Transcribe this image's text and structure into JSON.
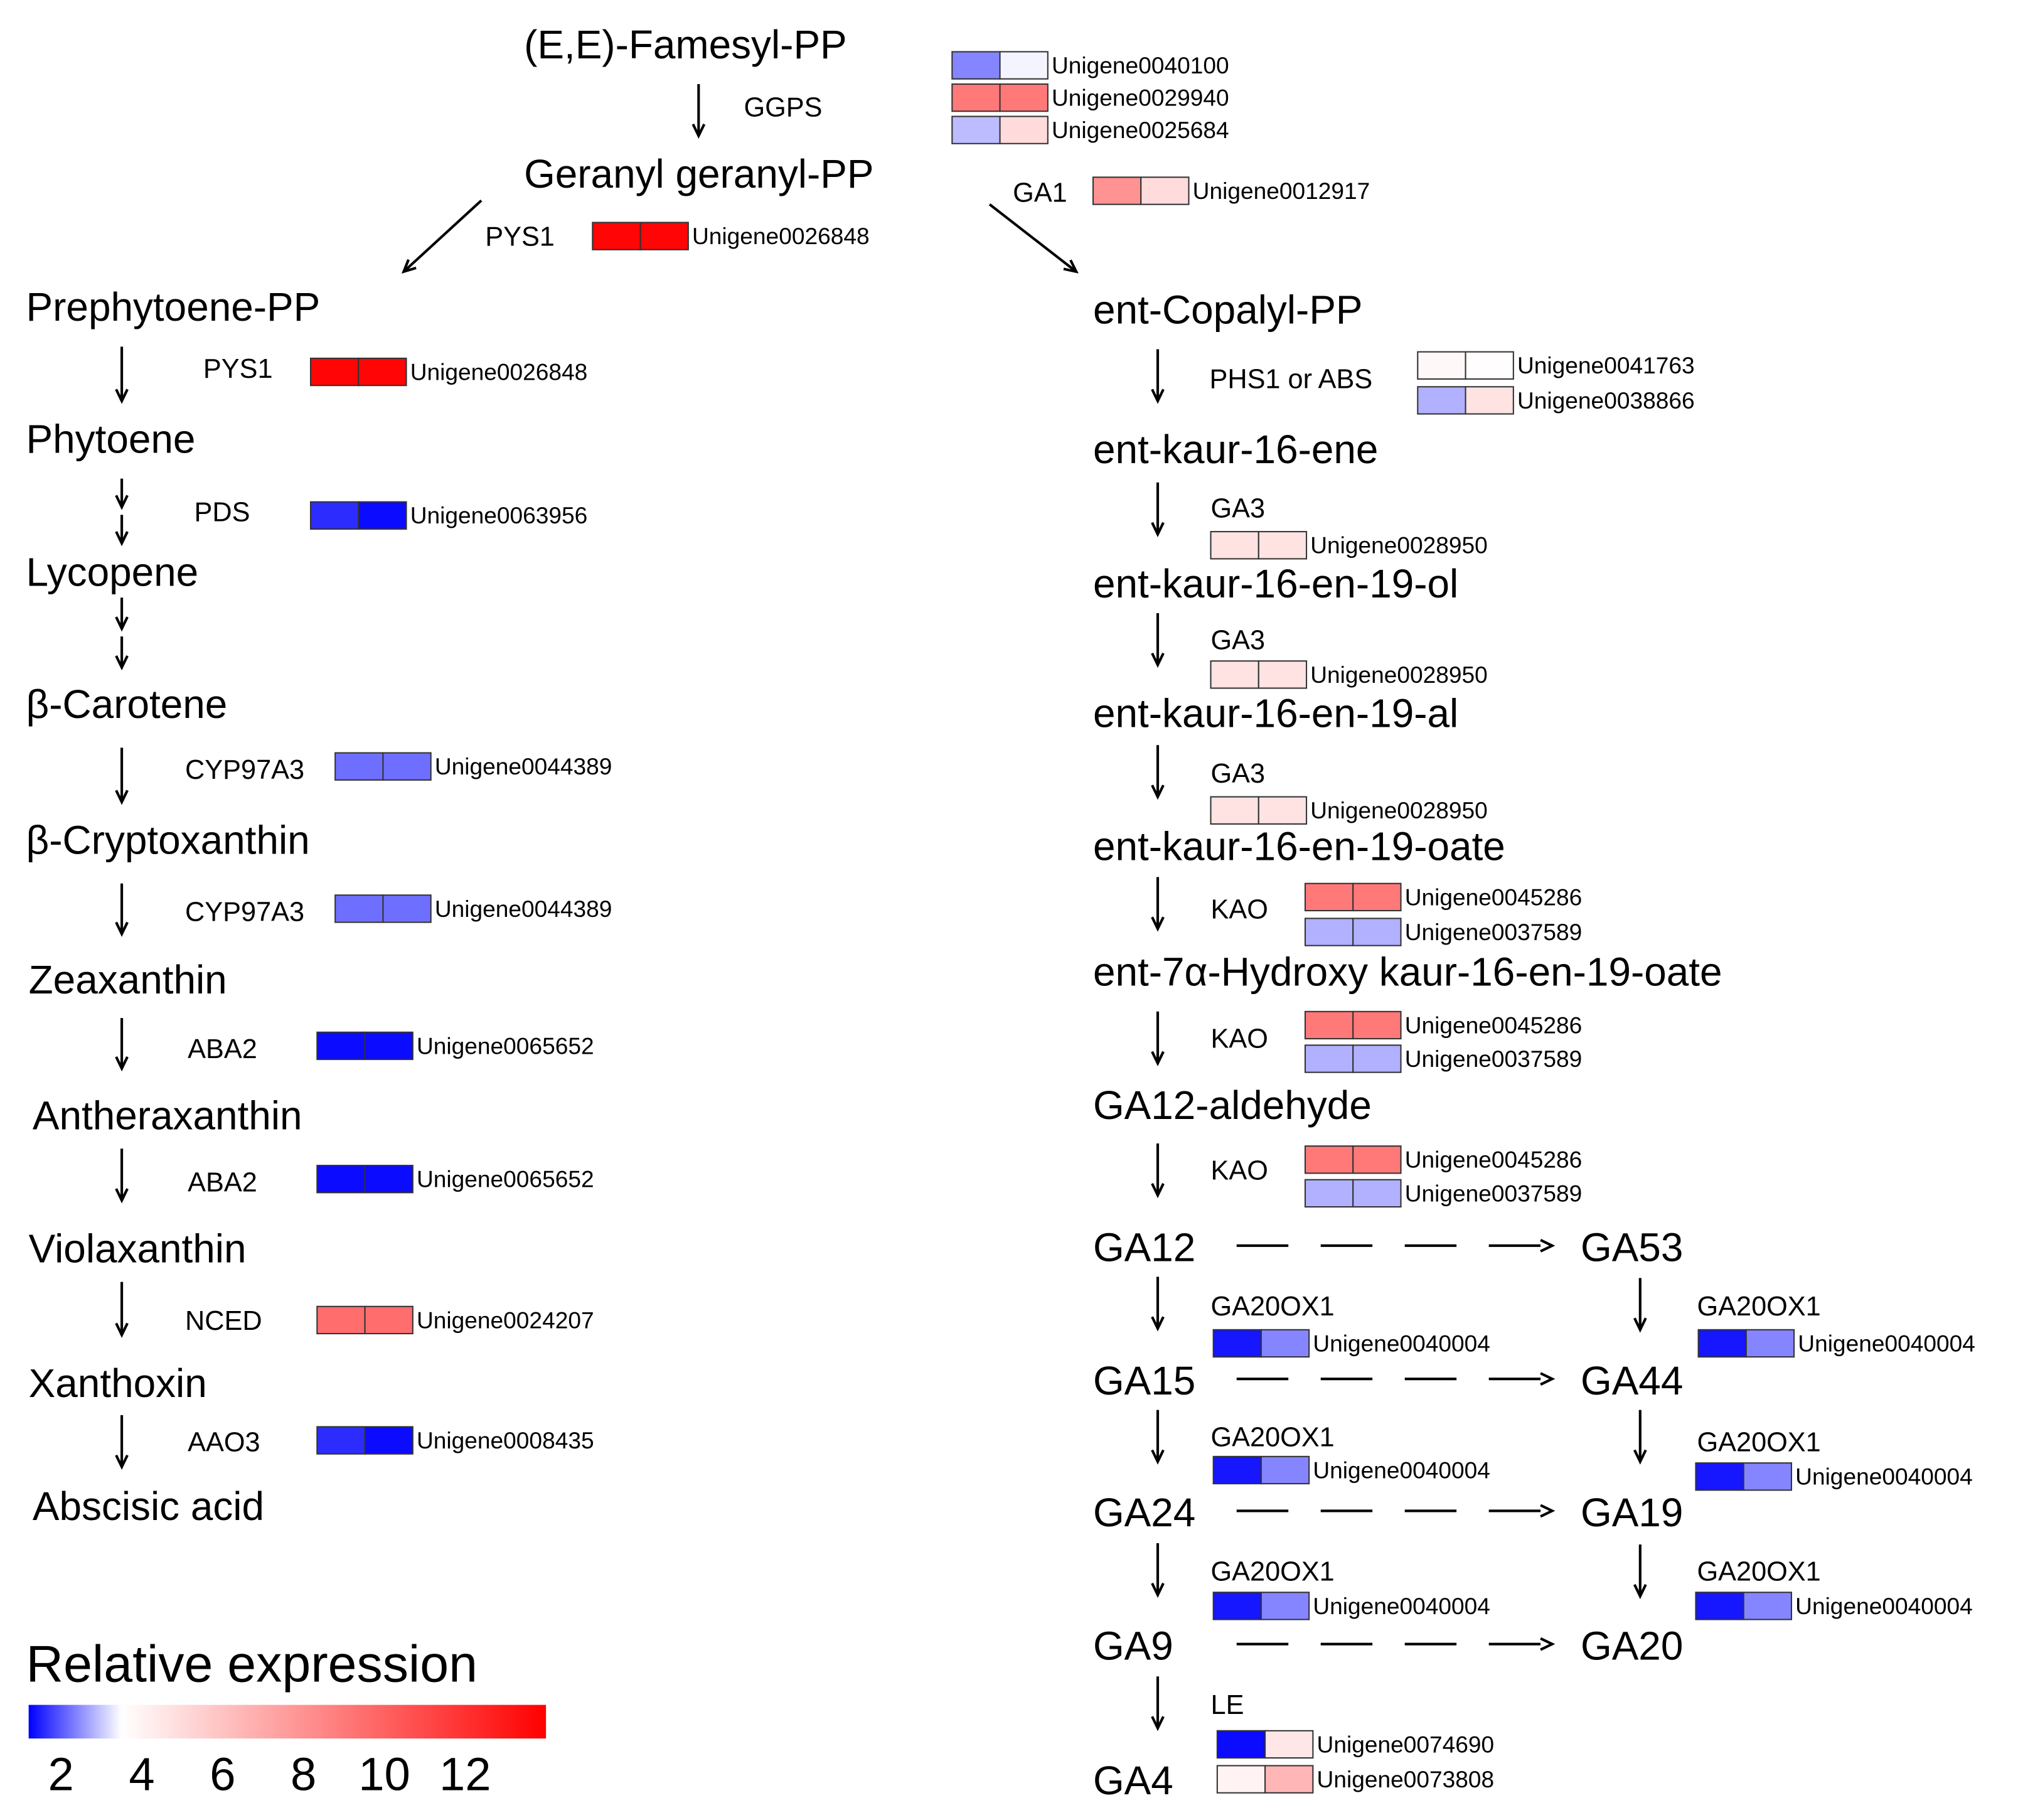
{
  "legend": {
    "title": "Relative expression",
    "ticks": [
      2,
      4,
      6,
      8,
      10,
      12
    ],
    "color_stops": [
      {
        "value": 1.2,
        "color": "#0000ff"
      },
      {
        "value": 3.5,
        "color": "#ffffff"
      },
      {
        "value": 14,
        "color": "#ff0000"
      }
    ]
  },
  "compounds": [
    "(E,E)-Famesyl-PP",
    "Geranyl geranyl-PP",
    "Prephytoene-PP",
    "Phytoene",
    "Lycopene",
    "β-Carotene",
    "β-Cryptoxanthin",
    "Zeaxanthin",
    "Antheraxanthin",
    "Violaxanthin",
    "Xanthoxin",
    "Abscisic acid",
    "ent-Copalyl-PP",
    "ent-kaur-16-ene",
    "ent-kaur-16-en-19-ol",
    "ent-kaur-16-en-19-al",
    "ent-kaur-16-en-19-oate",
    "ent-7α-Hydroxy kaur-16-en-19-oate",
    "GA12-aldehyde",
    "GA12",
    "GA53",
    "GA15",
    "GA44",
    "GA24",
    "GA19",
    "GA9",
    "GA20",
    "GA4"
  ],
  "enzymes": [
    "GGPS",
    "PYS1",
    "PDS",
    "CYP97A3",
    "ABA2",
    "NCED",
    "AAO3",
    "GA1",
    "PHS1 or ABS",
    "GA3",
    "KAO",
    "GA20OX1",
    "LE"
  ],
  "genes": [
    {
      "id": "Unigene0040100",
      "values": [
        2.4,
        3.4
      ]
    },
    {
      "id": "Unigene0029940",
      "values": [
        9,
        9
      ]
    },
    {
      "id": "Unigene0025684",
      "values": [
        2.9,
        5
      ]
    },
    {
      "id": "Unigene0012917",
      "values": [
        8,
        5
      ]
    },
    {
      "id": "Unigene0026848",
      "values": [
        13.8,
        13.8
      ]
    },
    {
      "id": "Unigene0063956",
      "values": [
        1.6,
        1.3
      ]
    },
    {
      "id": "Unigene0044389",
      "values": [
        2.2,
        2.2
      ]
    },
    {
      "id": "Unigene0065652",
      "values": [
        1.3,
        1.3
      ]
    },
    {
      "id": "Unigene0024207",
      "values": [
        9.5,
        9.5
      ]
    },
    {
      "id": "Unigene0008435",
      "values": [
        1.6,
        1.3
      ]
    },
    {
      "id": "Unigene0041763",
      "values": [
        3.8,
        3.6
      ]
    },
    {
      "id": "Unigene0038866",
      "values": [
        2.8,
        4.7
      ]
    },
    {
      "id": "Unigene0028950",
      "values": [
        4.7,
        4.7
      ]
    },
    {
      "id": "Unigene0045286",
      "values": [
        9,
        9
      ]
    },
    {
      "id": "Unigene0037589",
      "values": [
        2.8,
        2.8
      ]
    },
    {
      "id": "Unigene0040004",
      "values": [
        1.4,
        2.4
      ]
    },
    {
      "id": "Unigene0074690",
      "values": [
        1.3,
        4.5
      ]
    },
    {
      "id": "Unigene0073808",
      "values": [
        4,
        6.5
      ]
    }
  ]
}
